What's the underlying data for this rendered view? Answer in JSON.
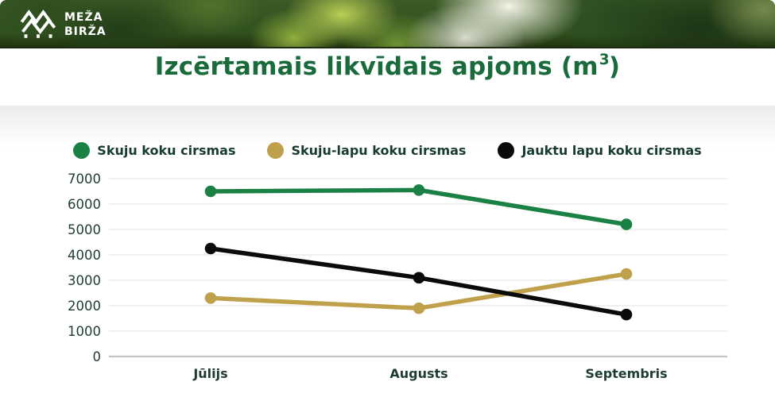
{
  "brand": {
    "name_line1": "MEŽA",
    "name_line2": "BIRŽA"
  },
  "title": {
    "prefix": "Izcērtamais likvīdais apjoms (m",
    "superscript": "3",
    "suffix": ")"
  },
  "chart_data": {
    "type": "line",
    "title": "Izcērtamais likvīdais apjoms (m³)",
    "categories": [
      "Jūlijs",
      "Augusts",
      "Septembris"
    ],
    "series": [
      {
        "name": "Skuju koku cirsmas",
        "color": "#1a8044",
        "values": [
          6500,
          6550,
          5200
        ]
      },
      {
        "name": "Skuju-lapu koku cirsmas",
        "color": "#bfa14b",
        "values": [
          2300,
          1900,
          3250
        ]
      },
      {
        "name": "Jauktu lapu koku cirsmas",
        "color": "#0a0a0a",
        "values": [
          4250,
          3100,
          1650
        ]
      }
    ],
    "draw_order": [
      1,
      0,
      2
    ],
    "ylim": [
      0,
      7000
    ],
    "yticks": [
      0,
      1000,
      2000,
      3000,
      4000,
      5000,
      6000,
      7000
    ],
    "grid": true,
    "legend_position": "top"
  },
  "colors": {
    "title_green": "#1a6b3c",
    "axis_text": "#1f3c31",
    "legend_text": "#173c2c",
    "gridline": "#e8e8e8",
    "axis_line": "#c3c3c3",
    "banner_green": "#33511f",
    "logo_white": "#ffffff"
  }
}
